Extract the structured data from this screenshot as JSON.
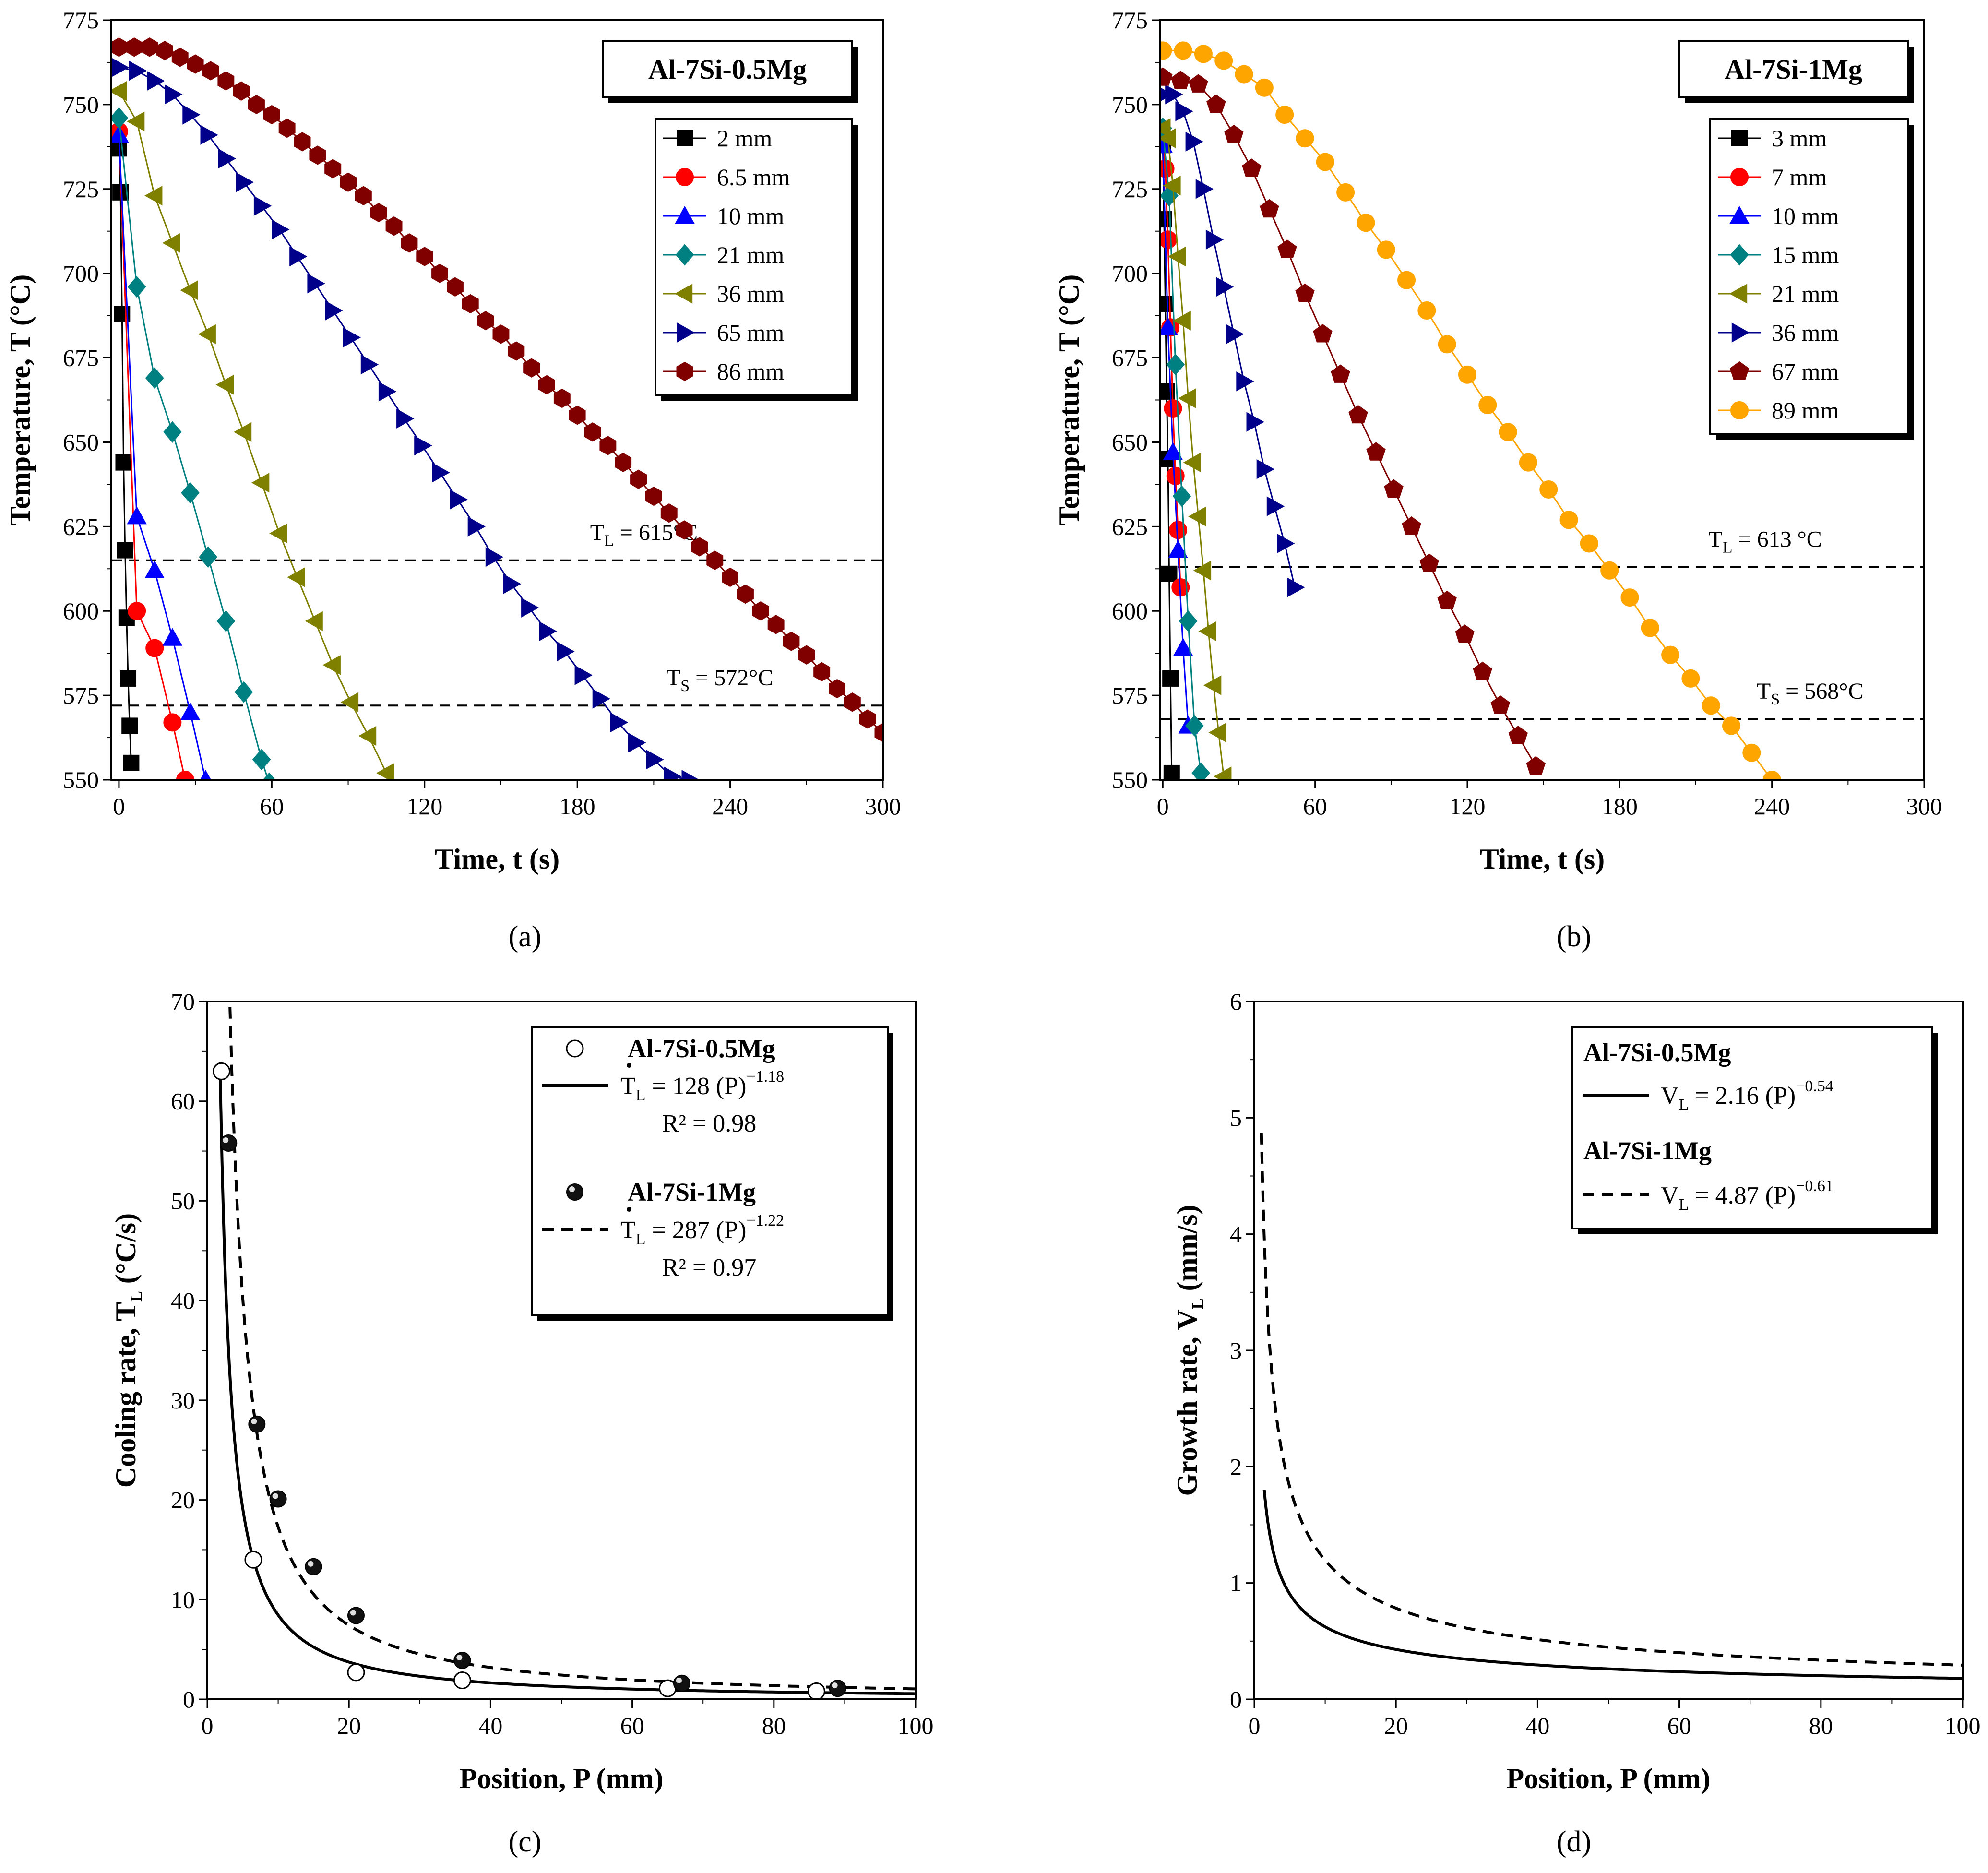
{
  "chart_data": [
    {
      "panel": "(a)",
      "type": "line",
      "title": "Al-7Si-0.5Mg",
      "xlabel": "Time, t (s)",
      "ylabel": "Temperature, T (°C)",
      "xlim": [
        -3,
        300
      ],
      "ylim": [
        550,
        775
      ],
      "xticks": [
        0,
        60,
        120,
        180,
        240,
        300
      ],
      "yticks": [
        550,
        575,
        600,
        625,
        650,
        675,
        700,
        725,
        750,
        775
      ],
      "ref_lines": [
        {
          "y": 615,
          "label_main": "T",
          "label_sub": "L",
          "label_rest": " = 615°C",
          "lx": 185,
          "ly": 621
        },
        {
          "y": 572,
          "label_main": "T",
          "label_sub": "S",
          "label_rest": " = 572°C",
          "lx": 215,
          "ly": 578
        }
      ],
      "series": [
        {
          "name": "2 mm",
          "color": "#000000",
          "marker": "square",
          "x": [
            0,
            0.6,
            1.2,
            1.8,
            2.4,
            3,
            3.6,
            4.2,
            4.8
          ],
          "y": [
            737,
            724,
            688,
            644,
            618,
            598,
            580,
            566,
            555
          ]
        },
        {
          "name": "6.5 mm",
          "color": "#ff0000",
          "marker": "circle",
          "x": [
            0,
            7,
            14,
            21,
            26
          ],
          "y": [
            742,
            600,
            589,
            567,
            550
          ]
        },
        {
          "name": "10 mm",
          "color": "#0000ff",
          "marker": "triangle-up",
          "x": [
            0,
            7,
            14,
            21,
            28,
            34
          ],
          "y": [
            741,
            628,
            612,
            592,
            570,
            550
          ]
        },
        {
          "name": "21 mm",
          "color": "#008080",
          "marker": "diamond",
          "x": [
            0,
            7,
            14,
            21,
            28,
            35,
            42,
            49,
            56,
            59
          ],
          "y": [
            746,
            696,
            669,
            653,
            635,
            616,
            597,
            576,
            556,
            549
          ]
        },
        {
          "name": "36 mm",
          "color": "#808000",
          "marker": "triangle-left",
          "x": [
            0,
            7,
            14,
            21,
            28,
            35,
            42,
            49,
            56,
            63,
            70,
            77,
            84,
            91,
            98,
            105
          ],
          "y": [
            754,
            745,
            723,
            709,
            695,
            682,
            667,
            653,
            638,
            623,
            610,
            597,
            584,
            573,
            563,
            552
          ]
        },
        {
          "name": "65 mm",
          "color": "#00008b",
          "marker": "triangle-right",
          "x": [
            0,
            7,
            14,
            21,
            28,
            35,
            42,
            49,
            56,
            63,
            70,
            77,
            84,
            91,
            98,
            105,
            112,
            119,
            126,
            133,
            140,
            147,
            154,
            161,
            168,
            175,
            182,
            189,
            196,
            203,
            210,
            217,
            224
          ],
          "y": [
            761,
            760,
            757,
            753,
            747,
            741,
            734,
            727,
            720,
            713,
            705,
            697,
            689,
            681,
            673,
            665,
            657,
            649,
            641,
            633,
            625,
            616,
            608,
            601,
            594,
            588,
            581,
            574,
            567,
            561,
            556,
            551,
            550
          ]
        },
        {
          "name": "86 mm",
          "color": "#800000",
          "marker": "hexagon",
          "x": [
            0,
            6,
            12,
            18,
            24,
            30,
            36,
            42,
            48,
            54,
            60,
            66,
            72,
            78,
            84,
            90,
            96,
            102,
            108,
            114,
            120,
            126,
            132,
            138,
            144,
            150,
            156,
            162,
            168,
            174,
            180,
            186,
            192,
            198,
            204,
            210,
            216,
            222,
            228,
            234,
            240,
            246,
            252,
            258,
            264,
            270,
            276,
            282,
            288,
            294,
            300
          ],
          "y": [
            767,
            767,
            767,
            766,
            764,
            762,
            760,
            757,
            754,
            750,
            747,
            743,
            739,
            735,
            731,
            727,
            723,
            718,
            714,
            709,
            705,
            700,
            696,
            691,
            686,
            682,
            677,
            672,
            667,
            663,
            658,
            653,
            649,
            644,
            639,
            634,
            629,
            624,
            619,
            615,
            610,
            605,
            600,
            596,
            591,
            587,
            582,
            577,
            573,
            568,
            564
          ]
        }
      ]
    },
    {
      "panel": "(b)",
      "type": "line",
      "title": "Al-7Si-1Mg",
      "xlabel": "Time, t (s)",
      "ylabel": "Temperature, T (°C)",
      "xlim": [
        -1,
        300
      ],
      "ylim": [
        550,
        775
      ],
      "xticks": [
        0,
        60,
        120,
        180,
        240,
        300
      ],
      "yticks": [
        550,
        575,
        600,
        625,
        650,
        675,
        700,
        725,
        750,
        775
      ],
      "ref_lines": [
        {
          "y": 613,
          "label_main": "T",
          "label_sub": "L",
          "label_rest": " = 613 °C",
          "lx": 215,
          "ly": 619
        },
        {
          "y": 568,
          "label_main": "T",
          "label_sub": "S",
          "label_rest": " = 568°C",
          "lx": 234,
          "ly": 574
        }
      ],
      "series": [
        {
          "name": "3 mm",
          "color": "#000000",
          "marker": "square",
          "x": [
            0,
            0.5,
            1,
            1.5,
            2,
            2.5,
            3,
            3.5
          ],
          "y": [
            738,
            716,
            691,
            665,
            645,
            611,
            580,
            552
          ]
        },
        {
          "name": "7 mm",
          "color": "#ff0000",
          "marker": "circle",
          "x": [
            0,
            1,
            2,
            3,
            4,
            5,
            6,
            7
          ],
          "y": [
            741,
            731,
            710,
            684,
            660,
            640,
            624,
            607
          ]
        },
        {
          "name": "10 mm",
          "color": "#0000ff",
          "marker": "triangle-up",
          "x": [
            0,
            2,
            4,
            6,
            8,
            10
          ],
          "y": [
            738,
            684,
            647,
            618,
            589,
            566
          ]
        },
        {
          "name": "15 mm",
          "color": "#008080",
          "marker": "diamond",
          "x": [
            0,
            2.5,
            5,
            7.5,
            10,
            12.5,
            15
          ],
          "y": [
            743,
            723,
            673,
            634,
            597,
            566,
            552
          ]
        },
        {
          "name": "21 mm",
          "color": "#808000",
          "marker": "triangle-left",
          "x": [
            0,
            2,
            4,
            6,
            8,
            10,
            12,
            14,
            16,
            18,
            20,
            22,
            24
          ],
          "y": [
            743,
            740,
            726,
            705,
            686,
            663,
            644,
            628,
            612,
            594,
            578,
            564,
            551
          ]
        },
        {
          "name": "36 mm",
          "color": "#00008b",
          "marker": "triangle-right",
          "x": [
            0,
            4,
            8,
            12,
            16,
            20,
            24,
            28,
            32,
            36,
            40,
            44,
            48,
            52
          ],
          "y": [
            753,
            753,
            748,
            739,
            725,
            710,
            696,
            682,
            668,
            656,
            642,
            631,
            620,
            607
          ]
        },
        {
          "name": "67 mm",
          "color": "#800000",
          "marker": "pentagon",
          "x": [
            0,
            7,
            14,
            21,
            28,
            35,
            42,
            49,
            56,
            63,
            70,
            77,
            84,
            91,
            98,
            105,
            112,
            119,
            126,
            133,
            140,
            147
          ],
          "y": [
            758,
            757,
            756,
            750,
            741,
            731,
            719,
            707,
            694,
            682,
            670,
            658,
            647,
            636,
            625,
            614,
            603,
            593,
            582,
            572,
            563,
            554
          ]
        },
        {
          "name": "89 mm",
          "color": "#ffa500",
          "marker": "circle",
          "x": [
            0,
            8,
            16,
            24,
            32,
            40,
            48,
            56,
            64,
            72,
            80,
            88,
            96,
            104,
            112,
            120,
            128,
            136,
            144,
            152,
            160,
            168,
            176,
            184,
            192,
            200,
            208,
            216,
            224,
            232,
            240
          ],
          "y": [
            766,
            766,
            765,
            763,
            759,
            755,
            747,
            740,
            733,
            724,
            715,
            707,
            698,
            689,
            679,
            670,
            661,
            653,
            644,
            636,
            627,
            620,
            612,
            604,
            595,
            587,
            580,
            572,
            566,
            558,
            550
          ]
        }
      ]
    },
    {
      "panel": "(c)",
      "type": "scatter",
      "xlabel": "Position, P (mm)",
      "ylabel_main": "Cooling rate, ",
      "ylabel_symbol": "T",
      "ylabel_sub": "L",
      "ylabel_unit": " (°C/s)",
      "xlim": [
        0,
        100
      ],
      "ylim": [
        0,
        70
      ],
      "xticks": [
        0,
        20,
        40,
        60,
        80,
        100
      ],
      "yticks": [
        0,
        10,
        20,
        30,
        40,
        50,
        60,
        70
      ],
      "series": [
        {
          "name": "Al-7Si-0.5Mg",
          "marker": "open-circle",
          "x": [
            2,
            6.5,
            21,
            36,
            65,
            86
          ],
          "y": [
            63,
            14,
            2.7,
            1.9,
            1.1,
            0.8
          ]
        },
        {
          "name": "Al-7Si-1Mg",
          "marker": "filled-sphere",
          "x": [
            3,
            7,
            10,
            15,
            21,
            36,
            67,
            89
          ],
          "y": [
            55.8,
            27.6,
            20.1,
            13.3,
            8.4,
            3.9,
            1.6,
            1.1
          ]
        }
      ],
      "fits": [
        {
          "name": "Al-7Si-0.5Mg",
          "style": "solid",
          "a": 128,
          "b": -1.18,
          "xmin": 1.8,
          "equation_coeff": "128 (P)",
          "equation_exp": "−1.18",
          "r2": "R² = 0.98"
        },
        {
          "name": "Al-7Si-1Mg",
          "style": "dashed",
          "a": 287,
          "b": -1.22,
          "xmin": 3.2,
          "equation_coeff": "287 (P)",
          "equation_exp": "−1.22",
          "r2": "R² = 0.97"
        }
      ],
      "legend_symbol": "T",
      "legend_sub": "L",
      "legend_eq": " = "
    },
    {
      "panel": "(d)",
      "type": "line",
      "xlabel": "Position, P (mm)",
      "ylabel_main": "Growth rate, V",
      "ylabel_sub": "L",
      "ylabel_unit": " (mm/s)",
      "xlim": [
        0,
        100
      ],
      "ylim": [
        0,
        6
      ],
      "xticks": [
        0,
        20,
        40,
        60,
        80,
        100
      ],
      "yticks": [
        0,
        1,
        2,
        3,
        4,
        5,
        6
      ],
      "series": [
        {
          "name": "Al-7Si-0.5Mg",
          "style": "solid",
          "a": 2.16,
          "b": -0.54,
          "xmin": 1.4,
          "equation_lhs": "V",
          "equation_sub": "L",
          "equation_rhs": " = 2.16 (P)",
          "equation_exp": "−0.54"
        },
        {
          "name": "Al-7Si-1Mg",
          "style": "dashed",
          "a": 4.87,
          "b": -0.61,
          "xmin": 1.0,
          "equation_lhs": "V",
          "equation_sub": "L",
          "equation_rhs": " = 4.87 (P)",
          "equation_exp": "−0.61"
        }
      ]
    }
  ]
}
